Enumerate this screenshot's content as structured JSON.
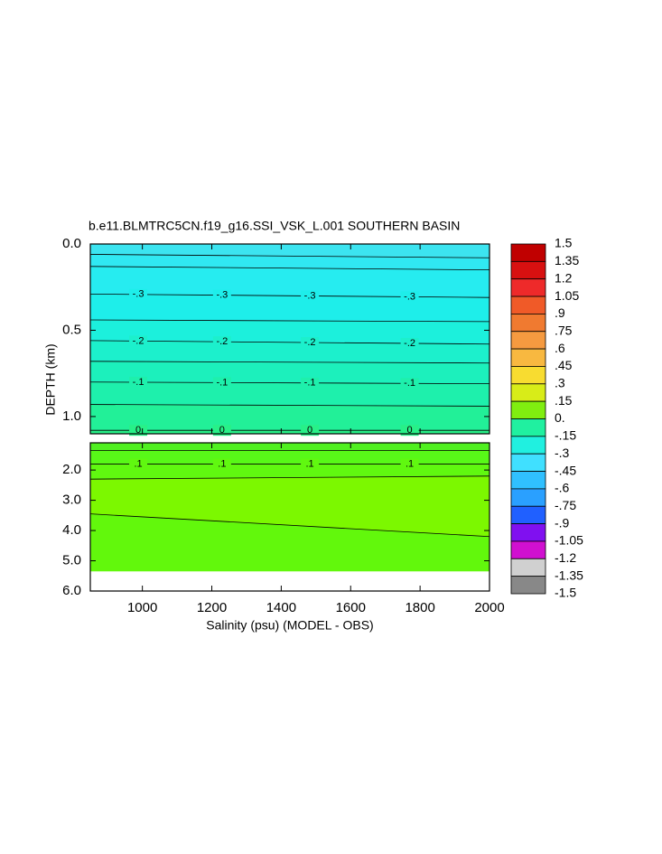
{
  "chart_data": {
    "type": "contour",
    "title": "b.e11.BLMTRC5CN.f19_g16.SSI_VSK_L.001 SOUTHERN BASIN",
    "x_label": "Salinity (psu) (MODEL - OBS)",
    "y_label": "DEPTH (km)",
    "xlim": [
      850,
      2000
    ],
    "xticks": [
      1000,
      1200,
      1400,
      1600,
      1800,
      2000
    ],
    "panels": [
      {
        "ylim": [
          0,
          1.1
        ],
        "yticks": [
          {
            "value": 0,
            "label": "0.0"
          },
          {
            "value": 0.5,
            "label": "0.5"
          },
          {
            "value": 1.0,
            "label": "1.0"
          }
        ],
        "contours": [
          {
            "value": -0.4,
            "depth": [
              0.06,
              0.08
            ]
          },
          {
            "value": -0.35,
            "depth": [
              0.13,
              0.15
            ]
          },
          {
            "value": -0.3,
            "label": "-.3",
            "depth": [
              0.29,
              0.31
            ]
          },
          {
            "value": -0.25,
            "depth": [
              0.44,
              0.45
            ]
          },
          {
            "value": -0.2,
            "label": "-.2",
            "depth": [
              0.56,
              0.58
            ]
          },
          {
            "value": -0.15,
            "depth": [
              0.68,
              0.69
            ]
          },
          {
            "value": -0.1,
            "label": "-.1",
            "depth": [
              0.8,
              0.81
            ]
          },
          {
            "value": -0.05,
            "depth": [
              0.93,
              0.94
            ]
          },
          {
            "value": 0,
            "label": "0",
            "depth": [
              1.08,
              1.08
            ]
          }
        ],
        "fill_colors": [
          "#3ce4f0",
          "#30e8f2",
          "#26ecf0",
          "#1eeeea",
          "#1cf0dc",
          "#1cf0cc",
          "#1cf0bc",
          "#1ef0ac",
          "#22f098",
          "#28f088"
        ]
      },
      {
        "ylim": [
          1.1,
          6.0
        ],
        "yticks": [
          {
            "value": 2,
            "label": "2.0"
          },
          {
            "value": 3,
            "label": "3.0"
          },
          {
            "value": 4,
            "label": "4.0"
          },
          {
            "value": 5,
            "label": "5.0"
          },
          {
            "value": 6,
            "label": "6.0"
          }
        ],
        "data_depth_max": 5.35,
        "contours": [
          {
            "value": 0.05,
            "depth": [
              1.35,
              1.35
            ]
          },
          {
            "value": 0.1,
            "label": ".1",
            "depth": [
              1.8,
              1.8
            ]
          },
          {
            "value": 0.15,
            "depth": [
              2.3,
              2.2
            ]
          },
          {
            "value": 0.15,
            "depth": [
              3.45,
              4.2
            ]
          }
        ],
        "fill_colors": [
          "#50f020",
          "#58f818",
          "#60f810",
          "#7cf800",
          "#62f80c"
        ]
      }
    ],
    "colorbar": {
      "labels": [
        1.5,
        1.35,
        1.2,
        1.05,
        {
          "value": 0.9,
          "label": ".9"
        },
        {
          "value": 0.75,
          "label": ".75"
        },
        {
          "value": 0.6,
          "label": ".6"
        },
        {
          "value": 0.45,
          "label": ".45"
        },
        {
          "value": 0.3,
          "label": ".3"
        },
        {
          "value": 0.15,
          "label": ".15"
        },
        {
          "value": 0,
          "label": "0."
        },
        {
          "value": -0.15,
          "label": "-.15"
        },
        {
          "value": -0.3,
          "label": "-.3"
        },
        {
          "value": -0.45,
          "label": "-.45"
        },
        {
          "value": -0.6,
          "label": "-.6"
        },
        {
          "value": -0.75,
          "label": "-.75"
        },
        {
          "value": -0.9,
          "label": "-.9"
        },
        {
          "value": -1.05,
          "label": "-1.05"
        },
        {
          "value": -1.2,
          "label": "-1.2"
        },
        {
          "value": -1.35,
          "label": "-1.35"
        },
        {
          "value": -1.5,
          "label": "-1.5"
        }
      ],
      "colors": [
        "#c00000",
        "#d81010",
        "#ee2a2a",
        "#f05a28",
        "#f07a30",
        "#f59a40",
        "#f8b840",
        "#f8dc30",
        "#d8ec18",
        "#80ee10",
        "#20f0a0",
        "#20f0e0",
        "#40e0ff",
        "#30c0ff",
        "#2aa0ff",
        "#2060ff",
        "#8010f0",
        "#d010d0",
        "#d0d0d0",
        "#888888"
      ]
    }
  }
}
